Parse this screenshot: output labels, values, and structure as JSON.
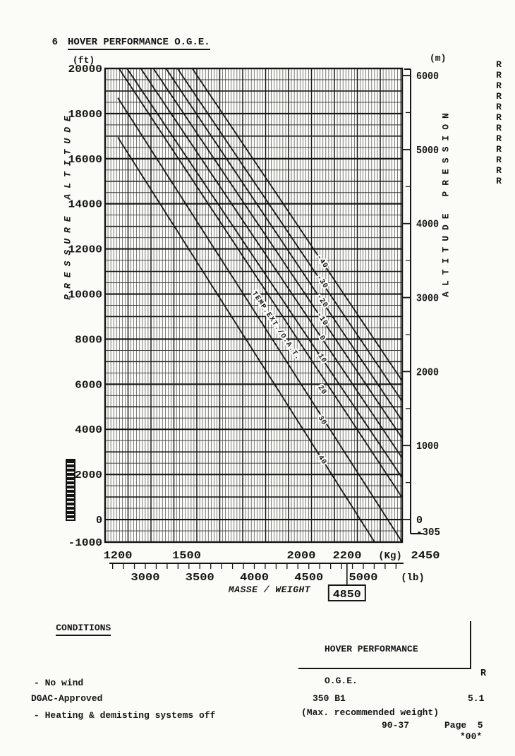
{
  "page": {
    "heading_number": "6",
    "heading": "HOVER PERFORMANCE O.G.E."
  },
  "chart_data": {
    "type": "line",
    "title": "HOVER PERFORMANCE O.G.E.",
    "description": "Hover ceiling out of ground effect: pressure altitude versus weight for outside air temperature lines",
    "x_axis_kg": {
      "unit_label": "(Kg)",
      "ticks": [
        1200,
        1500,
        2000,
        2200,
        2450
      ],
      "range_kg": [
        1200,
        2450
      ]
    },
    "x_axis_lb": {
      "unit_label": "(lb)",
      "ticks": [
        3000,
        3500,
        4000,
        4500,
        5000
      ],
      "minor_tick_step_lb": 100,
      "minor_tick_range_lb": [
        2700,
        5300
      ],
      "title": "MASSE / WEIGHT",
      "marked_value": "4850"
    },
    "y_axis_ft": {
      "unit_label": "(ft)",
      "title": "PRESSURE ALTITUDE",
      "ticks": [
        20000,
        18000,
        16000,
        14000,
        12000,
        10000,
        8000,
        6000,
        4000,
        2000,
        0,
        -1000
      ],
      "range_ft": [
        -1000,
        20000
      ]
    },
    "y_axis_m": {
      "unit_label": "(m)",
      "title": "ALTITUDE PRESSION",
      "ticks": [
        6000,
        5000,
        4000,
        3000,
        2000,
        1000,
        0,
        -305
      ],
      "minor_step_m": 500
    },
    "grid": {
      "minor_kg": 12.5,
      "major_kg": 100,
      "minor_ft": 500,
      "medium_ft": 1000,
      "major_ft": 2000
    },
    "temperature_lines": {
      "family_label": {
        "text": "TEMP.EXT./O.A.T.",
        "at_kg_ft": [
          1885,
          8550
        ]
      },
      "lines": [
        {
          "label": "-40",
          "points_kg_ft": [
            [
              1525,
              20000
            ],
            [
              2450,
              6000
            ]
          ],
          "label_at_kg_ft": [
            2085,
            11400
          ]
        },
        {
          "label": "-30",
          "points_kg_ft": [
            [
              1460,
              20000
            ],
            [
              2450,
              5100
            ]
          ],
          "label_at_kg_ft": [
            2085,
            10500
          ]
        },
        {
          "label": "-20",
          "points_kg_ft": [
            [
              1410,
              20000
            ],
            [
              2450,
              4240
            ]
          ],
          "label_at_kg_ft": [
            2085,
            9650
          ]
        },
        {
          "label": "-10",
          "points_kg_ft": [
            [
              1355,
              20000
            ],
            [
              2450,
              3460
            ]
          ],
          "label_at_kg_ft": [
            2085,
            8850
          ]
        },
        {
          "label": "0",
          "points_kg_ft": [
            [
              1300,
              20000
            ],
            [
              2450,
              2580
            ]
          ],
          "label_at_kg_ft": [
            2085,
            8000
          ]
        },
        {
          "label": "10",
          "points_kg_ft": [
            [
              1240,
              20000
            ],
            [
              2450,
              1700
            ]
          ],
          "label_at_kg_ft": [
            2085,
            7100
          ]
        },
        {
          "label": "20",
          "points_kg_ft": [
            [
              1205,
              20000
            ],
            [
              2450,
              820
            ]
          ],
          "label_at_kg_ft": [
            2085,
            5700
          ]
        },
        {
          "label": "30",
          "points_kg_ft": [
            [
              1200,
              18700
            ],
            [
              2440,
              -1000
            ]
          ],
          "label_at_kg_ft": [
            2085,
            4350
          ]
        },
        {
          "label": "40",
          "points_kg_ft": [
            [
              1200,
              16950
            ],
            [
              2320,
              -1000
            ]
          ],
          "label_at_kg_ft": [
            2085,
            2600
          ]
        }
      ]
    }
  },
  "r_column": {
    "letter": "R",
    "count": 12
  },
  "conditions": {
    "heading": "CONDITIONS",
    "items": [
      "- No wind",
      "- Heating & demisting systems off"
    ]
  },
  "title_block": {
    "line1": "HOVER PERFORMANCE",
    "line2": "O.G.E.",
    "line3": "(Max. recommended weight)",
    "revision_mark": "R"
  },
  "footer": {
    "approval": "DGAC-Approved",
    "model": "350 B1",
    "section": "5.1",
    "revision": "90-37",
    "page": "Page  5",
    "issue": "*00*"
  },
  "colors": {
    "ink": "#151515",
    "paper": "#fbfbf8"
  }
}
